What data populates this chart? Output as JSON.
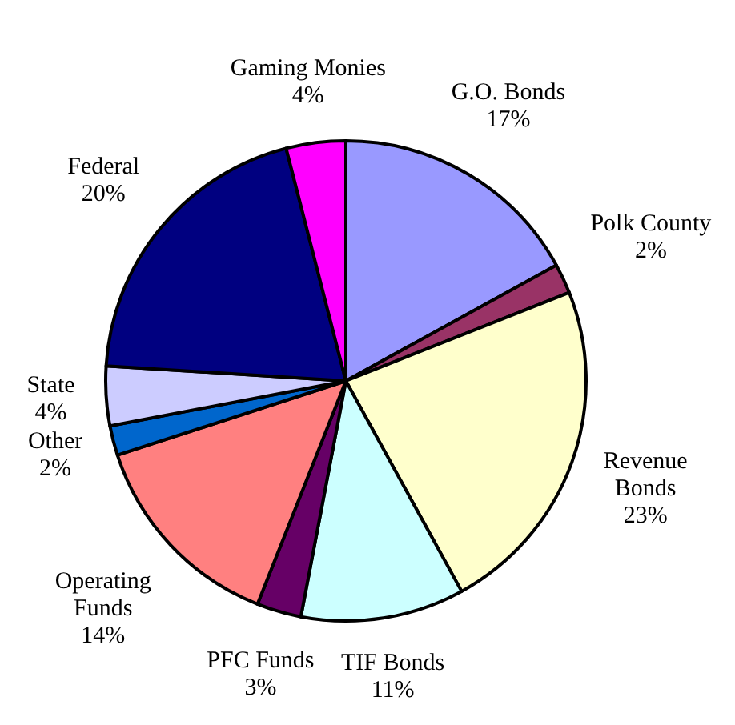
{
  "chart_data": {
    "type": "pie",
    "categories": [
      "G.O. Bonds",
      "Polk County",
      "Revenue Bonds",
      "TIF Bonds",
      "PFC Funds",
      "Operating Funds",
      "Other",
      "State",
      "Federal",
      "Gaming Monies"
    ],
    "values": [
      17,
      2,
      23,
      11,
      3,
      14,
      2,
      4,
      20,
      4
    ],
    "colors": [
      "#9999ff",
      "#993366",
      "#ffffcc",
      "#ccffff",
      "#660066",
      "#ff8080",
      "#0066cc",
      "#ccccff",
      "#000080",
      "#ff00ff"
    ],
    "value_labels": [
      "17%",
      "2%",
      "23%",
      "11%",
      "3%",
      "14%",
      "2%",
      "4%",
      "20%",
      "4%"
    ]
  }
}
